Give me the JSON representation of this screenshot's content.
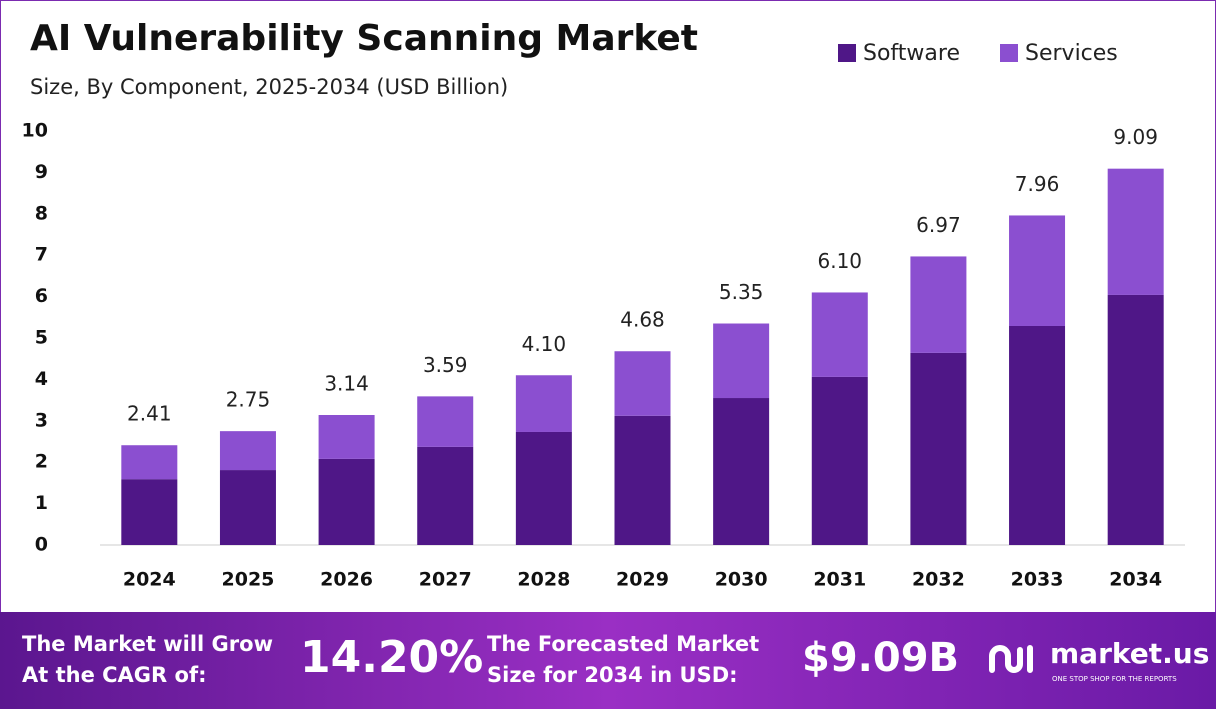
{
  "chart_data": {
    "type": "stacked_bar",
    "title": "AI Vulnerability Scanning Market",
    "subtitle": "Size, By Component, 2025-2034 (USD Billion)",
    "categories": [
      "2024",
      "2025",
      "2026",
      "2027",
      "2028",
      "2029",
      "2030",
      "2031",
      "2032",
      "2033",
      "2034"
    ],
    "series": [
      {
        "name": "Software",
        "color": "#4f1787",
        "values": [
          1.59,
          1.81,
          2.08,
          2.37,
          2.73,
          3.12,
          3.55,
          4.06,
          4.64,
          5.29,
          6.04
        ]
      },
      {
        "name": "Services",
        "color": "#8b4fd0",
        "values": [
          0.82,
          0.94,
          1.06,
          1.22,
          1.37,
          1.56,
          1.8,
          2.04,
          2.33,
          2.67,
          3.05
        ]
      }
    ],
    "totals": [
      2.41,
      2.75,
      3.14,
      3.59,
      4.1,
      4.68,
      5.35,
      6.1,
      6.97,
      7.96,
      9.09
    ],
    "total_labels": [
      "2.41",
      "2.75",
      "3.14",
      "3.59",
      "4.10",
      "4.68",
      "5.35",
      "6.10",
      "6.97",
      "7.96",
      "9.09"
    ],
    "ylim": [
      0,
      10
    ],
    "yticks": [
      0,
      1,
      2,
      3,
      4,
      5,
      6,
      7,
      8,
      9,
      10
    ],
    "grid": false,
    "legend": "top-right"
  },
  "footer": {
    "cagr_text_1": "The Market will Grow",
    "cagr_text_2": "At the CAGR of:",
    "cagr": "14.20%",
    "forecast_text_1": "The Forecasted Market",
    "forecast_text_2": "Size for 2034 in USD:",
    "forecast": "$9.09B",
    "brand": "market.us",
    "tagline": "ONE STOP SHOP FOR THE REPORTS"
  }
}
